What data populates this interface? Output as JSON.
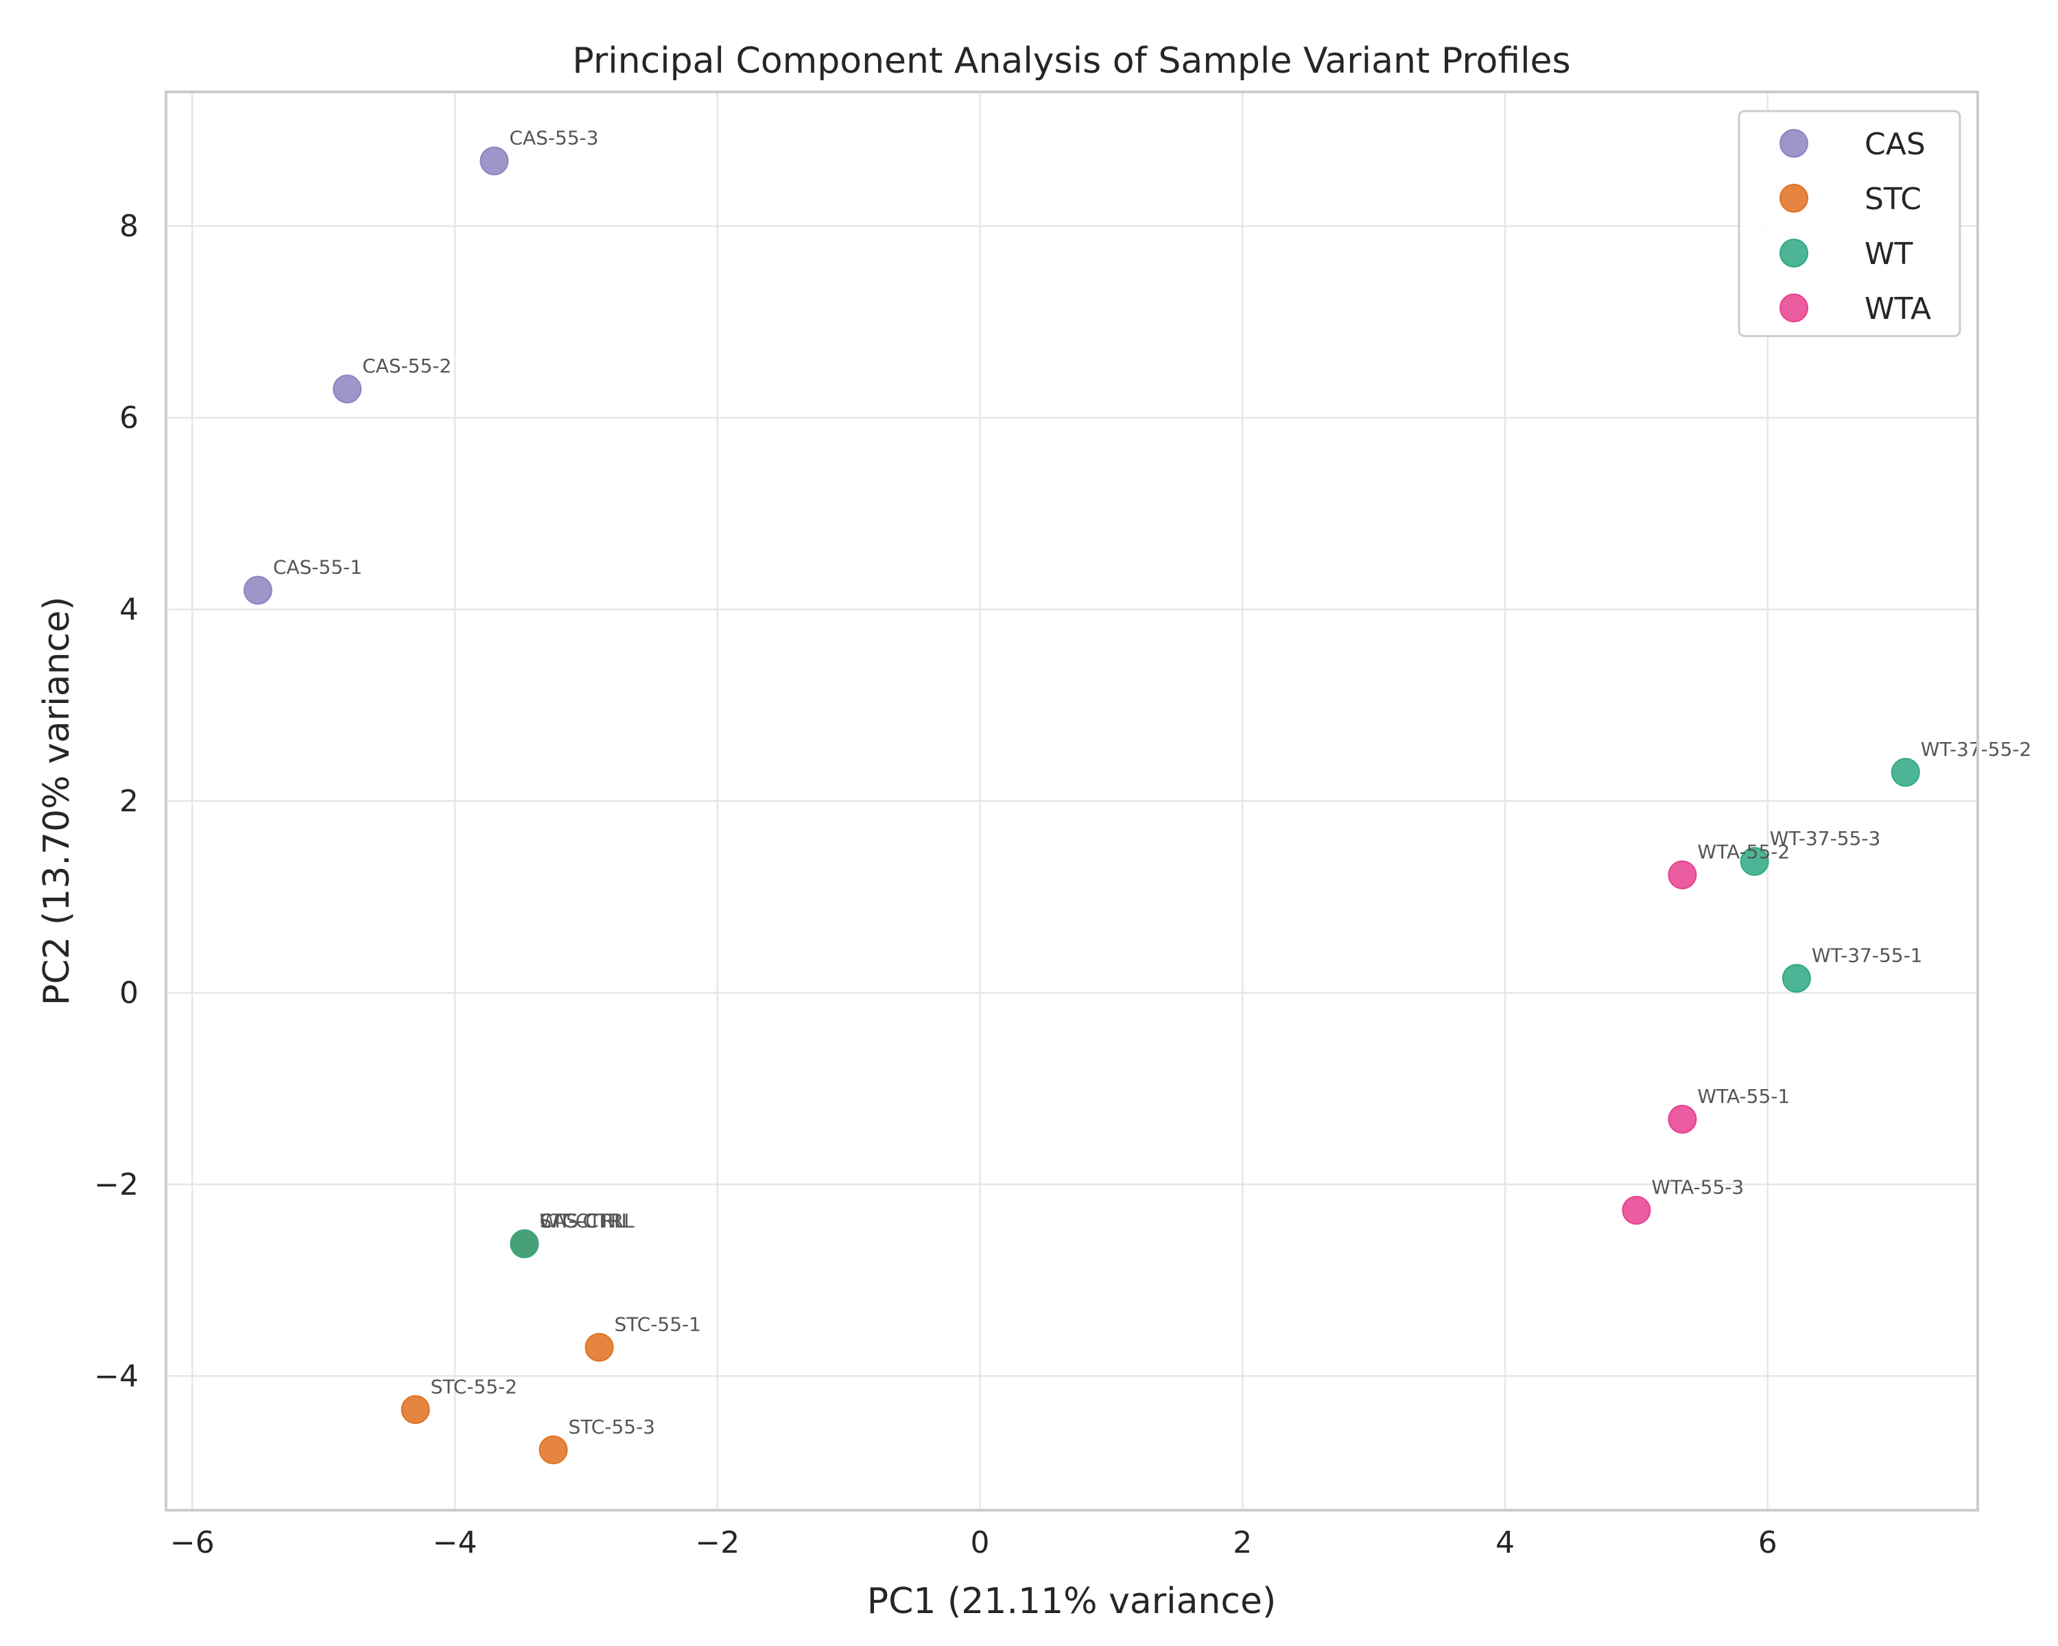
{
  "chart_data": {
    "type": "scatter",
    "title": "Principal Component Analysis of Sample Variant Profiles",
    "xlabel": "PC1 (21.11% variance)",
    "ylabel": "PC2 (13.70% variance)",
    "xlim": [
      -6.2,
      7.6
    ],
    "ylim": [
      -5.4,
      9.4
    ],
    "xticks": [
      -6,
      -4,
      -2,
      0,
      2,
      4,
      6
    ],
    "yticks": [
      -4,
      -2,
      0,
      2,
      4,
      6,
      8
    ],
    "xtick_labels": [
      "−6",
      "−4",
      "−2",
      "0",
      "2",
      "4",
      "6"
    ],
    "ytick_labels": [
      "−4",
      "−2",
      "0",
      "2",
      "4",
      "6",
      "8"
    ],
    "grid": true,
    "legend_position": "top-right",
    "series": [
      {
        "name": "CAS",
        "color": "#8c84c0",
        "points": [
          {
            "label": "CAS-55-1",
            "x": -5.5,
            "y": 4.2
          },
          {
            "label": "CAS-55-2",
            "x": -4.82,
            "y": 6.3
          },
          {
            "label": "CAS-55-3",
            "x": -3.7,
            "y": 8.68
          }
        ]
      },
      {
        "name": "STC",
        "color": "#e07020",
        "points": [
          {
            "label": "STC-55-1",
            "x": -2.9,
            "y": -3.7
          },
          {
            "label": "STC-55-2",
            "x": -4.3,
            "y": -4.35
          },
          {
            "label": "STC-55-3",
            "x": -3.25,
            "y": -4.77
          }
        ]
      },
      {
        "name": "WT",
        "color": "#2ea882",
        "points": [
          {
            "label": "WT-37-55-1",
            "x": 6.22,
            "y": 0.15
          },
          {
            "label": "WT-37-55-2",
            "x": 7.05,
            "y": 2.3
          },
          {
            "label": "WT-37-55-3",
            "x": 5.9,
            "y": 1.37
          }
        ]
      },
      {
        "name": "WTA",
        "color": "#e8408f",
        "points": [
          {
            "label": "WTA-55-1",
            "x": 5.35,
            "y": -1.32
          },
          {
            "label": "WTA-55-2",
            "x": 5.35,
            "y": 1.23
          },
          {
            "label": "WTA-55-3",
            "x": 5.0,
            "y": -2.27
          }
        ]
      }
    ],
    "overlapping_points": [
      {
        "label": "CAS-CTRL",
        "x": -3.47,
        "y": -2.62,
        "color": "#8c84c0"
      },
      {
        "label": "STC-CTRL",
        "x": -3.47,
        "y": -2.62,
        "color": "#e07020"
      },
      {
        "label": "WT-CTRL",
        "x": -3.47,
        "y": -2.62,
        "color": "#2ea882"
      }
    ]
  }
}
